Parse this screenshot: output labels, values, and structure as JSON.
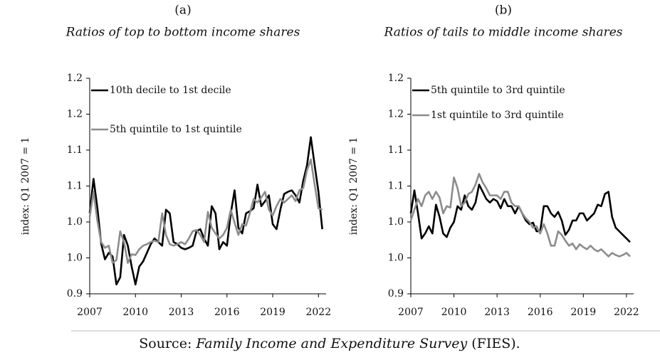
{
  "chart_data": [
    {
      "type": "line",
      "title": "(a)",
      "subtitle": "Ratios of top to bottom income shares",
      "ylabel": "index: Q1 2007 = 1",
      "x": [
        2007,
        2007.25,
        2007.5,
        2007.75,
        2008,
        2008.25,
        2008.5,
        2008.75,
        2009,
        2009.25,
        2009.5,
        2009.75,
        2010,
        2010.25,
        2010.5,
        2010.75,
        2011,
        2011.25,
        2011.5,
        2011.75,
        2012,
        2012.25,
        2012.5,
        2012.75,
        2013,
        2013.25,
        2013.5,
        2013.75,
        2014,
        2014.25,
        2014.5,
        2014.75,
        2015,
        2015.25,
        2015.5,
        2015.75,
        2016,
        2016.25,
        2016.5,
        2016.75,
        2017,
        2017.25,
        2017.5,
        2017.75,
        2018,
        2018.25,
        2018.5,
        2018.75,
        2019,
        2019.25,
        2019.5,
        2019.75,
        2020,
        2020.25,
        2020.5,
        2020.75,
        2021,
        2021.25,
        2021.5,
        2021.75,
        2022,
        2022.25
      ],
      "series": [
        {
          "name": "10th decile to 1st decile",
          "color": "#000000",
          "values": [
            1.012,
            1.06,
            1.02,
            0.97,
            0.948,
            0.957,
            0.952,
            0.913,
            0.923,
            0.982,
            0.967,
            0.938,
            0.913,
            0.938,
            0.945,
            0.957,
            0.969,
            0.977,
            0.972,
            0.967,
            1.017,
            1.012,
            0.972,
            0.969,
            0.964,
            0.962,
            0.964,
            0.967,
            0.987,
            0.99,
            0.977,
            0.967,
            1.022,
            1.012,
            0.962,
            0.972,
            0.967,
            1.012,
            1.044,
            0.992,
            0.984,
            1.012,
            1.015,
            1.019,
            1.052,
            1.022,
            1.029,
            1.037,
            0.997,
            0.99,
            1.017,
            1.039,
            1.042,
            1.044,
            1.037,
            1.027,
            1.057,
            1.079,
            1.118,
            1.079,
            1.042,
            0.99
          ]
        },
        {
          "name": "5th quintile to 1st quintile",
          "color": "#8c8c8c",
          "values": [
            1.007,
            1.042,
            1.002,
            0.972,
            0.964,
            0.967,
            0.943,
            0.947,
            0.987,
            0.972,
            0.943,
            0.955,
            0.954,
            0.962,
            0.967,
            0.969,
            0.972,
            0.974,
            0.972,
            1.012,
            0.982,
            0.969,
            0.967,
            0.969,
            0.972,
            0.969,
            0.977,
            0.987,
            0.989,
            0.982,
            0.972,
            1.014,
            0.992,
            0.984,
            0.977,
            0.982,
            0.992,
            1.017,
            0.999,
            0.982,
            0.997,
            0.995,
            1.012,
            1.032,
            1.027,
            1.034,
            1.042,
            1.017,
            1.009,
            1.022,
            1.032,
            1.027,
            1.032,
            1.037,
            1.029,
            1.044,
            1.047,
            1.072,
            1.087,
            1.052,
            1.019,
            1.017
          ]
        }
      ],
      "xlim": [
        2007,
        2022.5
      ],
      "xticks": [
        2007,
        2010,
        2013,
        2016,
        2019,
        2022
      ],
      "ylim": [
        0.9,
        1.2
      ],
      "yticks": [
        0.9,
        {
          "value": 0.95,
          "label": "1.0"
        },
        {
          "value": 1,
          "label": "1.0"
        },
        {
          "value": 1.05,
          "label": "1.1"
        },
        1.1,
        {
          "value": 1.15,
          "label": "1.2"
        },
        1.2
      ],
      "grid": false,
      "legend": "upper left"
    },
    {
      "type": "line",
      "title": "(b)",
      "subtitle": "Ratios of tails to middle income shares",
      "ylabel": "index: Q1 2007 = 1",
      "x": [
        2007,
        2007.25,
        2007.5,
        2007.75,
        2008,
        2008.25,
        2008.5,
        2008.75,
        2009,
        2009.25,
        2009.5,
        2009.75,
        2010,
        2010.25,
        2010.5,
        2010.75,
        2011,
        2011.25,
        2011.5,
        2011.75,
        2012,
        2012.25,
        2012.5,
        2012.75,
        2013,
        2013.25,
        2013.5,
        2013.75,
        2014,
        2014.25,
        2014.5,
        2014.75,
        2015,
        2015.25,
        2015.5,
        2015.75,
        2016,
        2016.25,
        2016.5,
        2016.75,
        2017,
        2017.25,
        2017.5,
        2017.75,
        2018,
        2018.25,
        2018.5,
        2018.75,
        2019,
        2019.25,
        2019.5,
        2019.75,
        2020,
        2020.25,
        2020.5,
        2020.75,
        2021,
        2021.25,
        2021.5,
        2021.75,
        2022,
        2022.25
      ],
      "series": [
        {
          "name": "5th quintile to 3rd quintile",
          "color": "#000000",
          "values": [
            1.012,
            1.044,
            1.012,
            0.977,
            0.984,
            0.994,
            0.984,
            1.024,
            1.007,
            0.984,
            0.979,
            0.992,
            1.0,
            1.022,
            1.017,
            1.037,
            1.022,
            1.017,
            1.027,
            1.052,
            1.042,
            1.032,
            1.027,
            1.032,
            1.029,
            1.019,
            1.032,
            1.022,
            1.022,
            1.012,
            1.022,
            1.012,
            1.002,
            0.997,
            0.999,
            0.987,
            0.987,
            1.022,
            1.022,
            1.012,
            1.007,
            1.014,
            1.002,
            0.982,
            0.989,
            1.002,
            1.002,
            1.012,
            1.012,
            1.002,
            1.007,
            1.012,
            1.024,
            1.022,
            1.039,
            1.042,
            1.007,
            0.992,
            0.987,
            0.982,
            0.977,
            0.972
          ]
        },
        {
          "name": "1st quintile to 3rd quintile",
          "color": "#8c8c8c",
          "values": [
            1.002,
            1.017,
            1.032,
            1.022,
            1.037,
            1.042,
            1.032,
            1.042,
            1.034,
            1.012,
            1.022,
            1.02,
            1.062,
            1.047,
            1.022,
            1.027,
            1.039,
            1.042,
            1.052,
            1.067,
            1.055,
            1.047,
            1.037,
            1.037,
            1.037,
            1.032,
            1.042,
            1.042,
            1.027,
            1.022,
            1.022,
            1.012,
            1.005,
            1.0,
            0.992,
            0.994,
            0.984,
            0.997,
            0.984,
            0.967,
            0.967,
            0.987,
            0.982,
            0.974,
            0.967,
            0.97,
            0.962,
            0.969,
            0.965,
            0.962,
            0.967,
            0.962,
            0.959,
            0.962,
            0.957,
            0.952,
            0.957,
            0.954,
            0.952,
            0.954,
            0.957,
            0.952
          ]
        }
      ],
      "xlim": [
        2007,
        2022.5
      ],
      "xticks": [
        2007,
        2010,
        2013,
        2016,
        2019,
        2022
      ],
      "ylim": [
        0.9,
        1.2
      ],
      "yticks": [
        0.9,
        {
          "value": 0.95,
          "label": "1.0"
        },
        {
          "value": 1,
          "label": "1.0"
        },
        {
          "value": 1.05,
          "label": "1.1"
        },
        1.1,
        {
          "value": 1.15,
          "label": "1.2"
        },
        1.2
      ],
      "grid": false,
      "legend": "upper left"
    }
  ],
  "source": {
    "prefix": "Source:",
    "title": "Family Income and Expenditure Survey",
    "suffix": "(FIES)."
  }
}
